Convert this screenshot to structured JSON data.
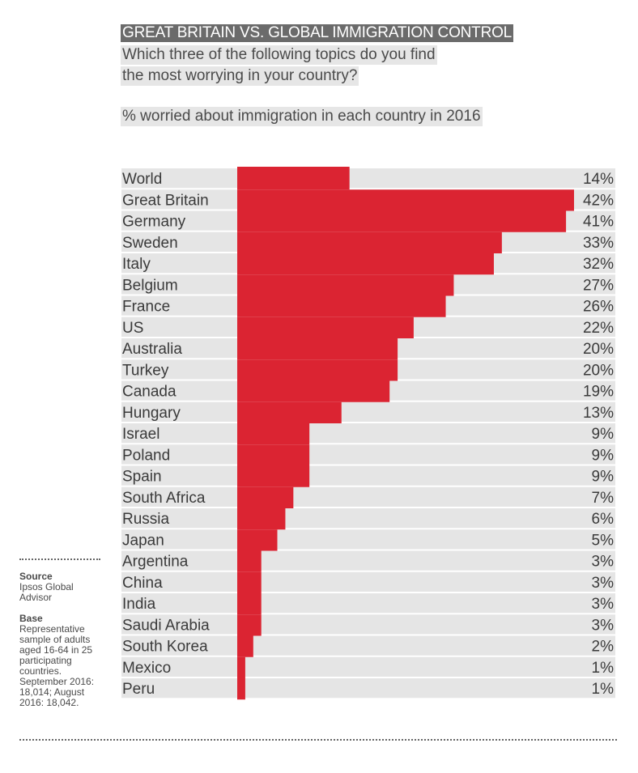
{
  "header": {
    "title": "GREAT BRITAIN VS. GLOBAL IMMIGRATION CONTROL",
    "question_line1": "Which three of the following topics do you find",
    "question_line2": "the most worrying in your country?",
    "subtitle": "% worried about immigration in each country in 2016"
  },
  "sidebar": {
    "source_label": "Source",
    "source_text": "Ipsos Global Advisor",
    "base_label": "Base",
    "base_text": "Representative sample of adults aged 16-64 in 25 participating countries. September 2016: 18,014; August 2016: 18,042."
  },
  "colors": {
    "bar": "#db2432",
    "track": "#e5e5e5",
    "text": "#3a3a3a"
  },
  "chart_data": {
    "type": "bar",
    "orientation": "horizontal",
    "title": "% worried about immigration in each country in 2016",
    "xlim": [
      0,
      42
    ],
    "value_suffix": "%",
    "categories": [
      "World",
      "Great Britain",
      "Germany",
      "Sweden",
      "Italy",
      "Belgium",
      "France",
      "US",
      "Australia",
      "Turkey",
      "Canada",
      "Hungary",
      "Israel",
      "Poland",
      "Spain",
      "South Africa",
      "Russia",
      "Japan",
      "Argentina",
      "China",
      "India",
      "Saudi Arabia",
      "South Korea",
      "Mexico",
      "Peru"
    ],
    "values": [
      14,
      42,
      41,
      33,
      32,
      27,
      26,
      22,
      20,
      20,
      19,
      13,
      9,
      9,
      9,
      7,
      6,
      5,
      3,
      3,
      3,
      3,
      2,
      1,
      1
    ],
    "value_labels": [
      "14%",
      "42%",
      "41%",
      "33%",
      "32%",
      "27%",
      "26%",
      "22%",
      "20%",
      "20%",
      "19%",
      "13%",
      "9%",
      "9%",
      "9%",
      "7%",
      "6%",
      "5%",
      "3%",
      "3%",
      "3%",
      "3%",
      "2%",
      "1%",
      "1%"
    ]
  }
}
